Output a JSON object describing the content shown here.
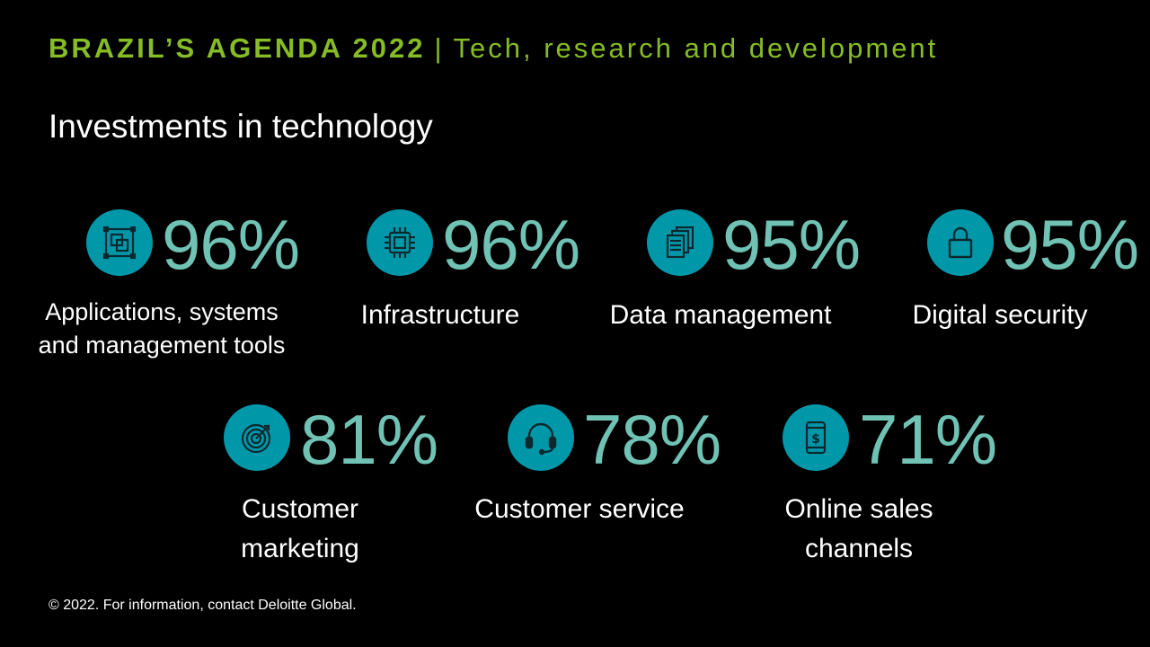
{
  "header": {
    "title": "BRAZIL’S AGENDA 2022",
    "separator": "|",
    "subtitle": "Tech, research and development"
  },
  "subtitle": "Investments in technology",
  "stats": [
    {
      "icon": "applications-icon",
      "value": "96%",
      "label_lines": [
        "Applications, systems",
        "and management tools"
      ]
    },
    {
      "icon": "chip-icon",
      "value": "96%",
      "label_lines": [
        "Infrastructure"
      ]
    },
    {
      "icon": "documents-icon",
      "value": "95%",
      "label_lines": [
        "Data management"
      ]
    },
    {
      "icon": "lock-icon",
      "value": "95%",
      "label_lines": [
        "Digital security"
      ]
    },
    {
      "icon": "target-icon",
      "value": "81%",
      "label_lines": [
        "Customer",
        "marketing"
      ]
    },
    {
      "icon": "headset-icon",
      "value": "78%",
      "label_lines": [
        "Customer service"
      ]
    },
    {
      "icon": "phone-dollar-icon",
      "value": "71%",
      "label_lines": [
        "Online sales",
        "channels"
      ]
    }
  ],
  "footer": "© 2022. For information, contact Deloitte Global.",
  "colors": {
    "accent_green": "#86bc25",
    "icon_circle": "#0097a9",
    "percent_text": "#6fc2b4",
    "background": "#000000"
  }
}
